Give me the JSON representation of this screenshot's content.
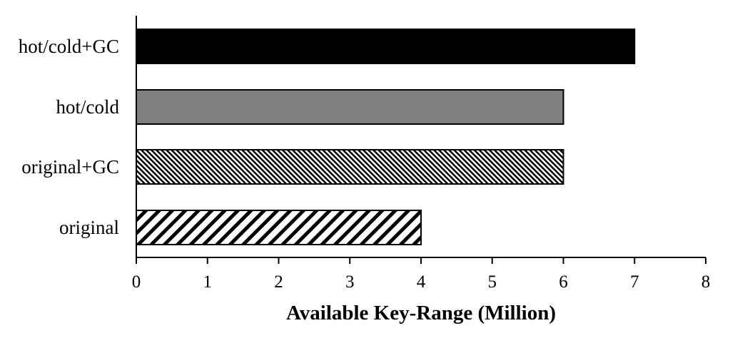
{
  "chart_data": {
    "type": "bar",
    "orientation": "horizontal",
    "categories": [
      "original",
      "original+GC",
      "hot/cold",
      "hot/cold+GC"
    ],
    "values": [
      4,
      6,
      6,
      7
    ],
    "xlabel": "Available Key-Range (Million)",
    "ylabel": "",
    "xlim": [
      0,
      8
    ],
    "xticks": [
      "0",
      "1",
      "2",
      "3",
      "4",
      "5",
      "6",
      "7",
      "8"
    ],
    "grid": false,
    "bar_styles": [
      {
        "fill": "hatch-wide-diagonal",
        "color": "#000000"
      },
      {
        "fill": "hatch-fine-diagonal",
        "color": "#000000"
      },
      {
        "fill": "solid",
        "color": "#808080"
      },
      {
        "fill": "solid",
        "color": "#000000"
      }
    ]
  }
}
